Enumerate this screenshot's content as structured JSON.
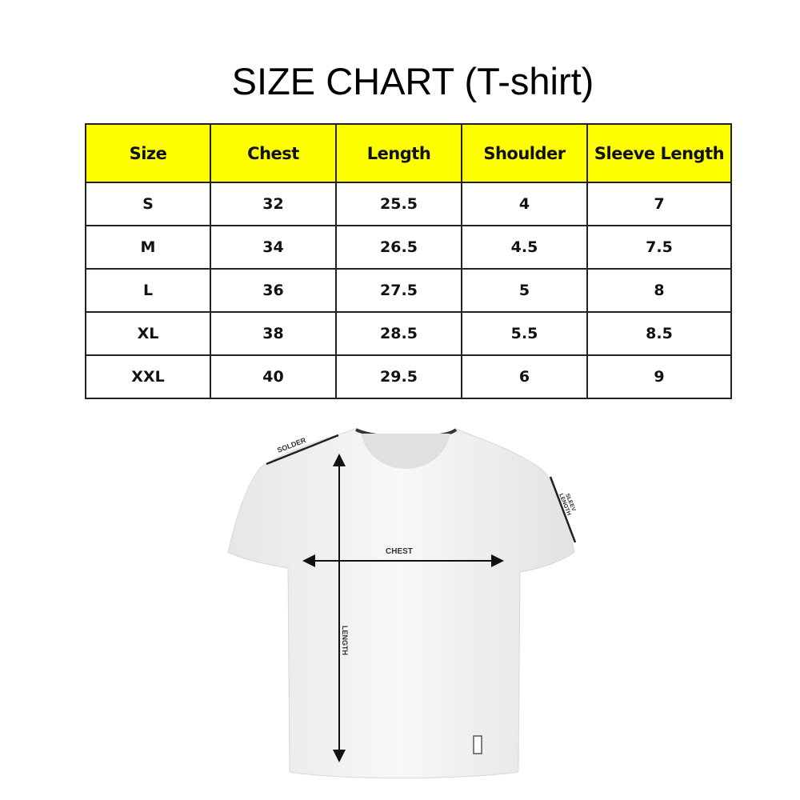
{
  "title": "SIZE CHART (T-shirt)",
  "table": {
    "headers": [
      "Size",
      "Chest",
      "Length",
      "Shoulder",
      "Sleeve Length"
    ],
    "rows": [
      [
        "S",
        "32",
        "25.5",
        "4",
        "7"
      ],
      [
        "M",
        "34",
        "26.5",
        "4.5",
        "7.5"
      ],
      [
        "L",
        "36",
        "27.5",
        "5",
        "8"
      ],
      [
        "XL",
        "38",
        "28.5",
        "5.5",
        "8.5"
      ],
      [
        "XXL",
        "40",
        "29.5",
        "6",
        "9"
      ]
    ]
  },
  "colors": {
    "header_bg": "#ffff00"
  },
  "diagram": {
    "shoulder_label": "SOLDER",
    "sleeve_label_1": "SLEEV",
    "sleeve_label_2": "LENGTH",
    "chest_label": "CHEST",
    "length_label": "LENGTH"
  }
}
